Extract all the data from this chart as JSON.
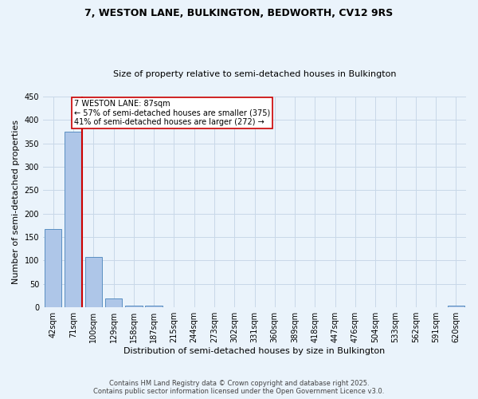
{
  "title1": "7, WESTON LANE, BULKINGTON, BEDWORTH, CV12 9RS",
  "title2": "Size of property relative to semi-detached houses in Bulkington",
  "xlabel": "Distribution of semi-detached houses by size in Bulkington",
  "ylabel": "Number of semi-detached properties",
  "bin_labels": [
    "42sqm",
    "71sqm",
    "100sqm",
    "129sqm",
    "158sqm",
    "187sqm",
    "215sqm",
    "244sqm",
    "273sqm",
    "302sqm",
    "331sqm",
    "360sqm",
    "389sqm",
    "418sqm",
    "447sqm",
    "476sqm",
    "504sqm",
    "533sqm",
    "562sqm",
    "591sqm",
    "620sqm"
  ],
  "bar_values": [
    168,
    375,
    107,
    19,
    4,
    3,
    0,
    0,
    0,
    0,
    0,
    0,
    0,
    0,
    0,
    0,
    0,
    0,
    0,
    0,
    4
  ],
  "bar_color": "#aec6e8",
  "bar_edge_color": "#5a8fc2",
  "red_line_bin_index": 1,
  "annotation_text": "7 WESTON LANE: 87sqm\n← 57% of semi-detached houses are smaller (375)\n41% of semi-detached houses are larger (272) →",
  "annotation_box_color": "#ffffff",
  "annotation_box_edge_color": "#cc0000",
  "red_line_color": "#cc0000",
  "grid_color": "#c8d8e8",
  "background_color": "#eaf3fb",
  "footer_text": "Contains HM Land Registry data © Crown copyright and database right 2025.\nContains public sector information licensed under the Open Government Licence v3.0.",
  "ylim": [
    0,
    450
  ],
  "yticks": [
    0,
    50,
    100,
    150,
    200,
    250,
    300,
    350,
    400,
    450
  ],
  "title1_fontsize": 9,
  "title2_fontsize": 8,
  "ylabel_fontsize": 8,
  "xlabel_fontsize": 8,
  "tick_fontsize": 7,
  "footer_fontsize": 6,
  "annotation_fontsize": 7
}
